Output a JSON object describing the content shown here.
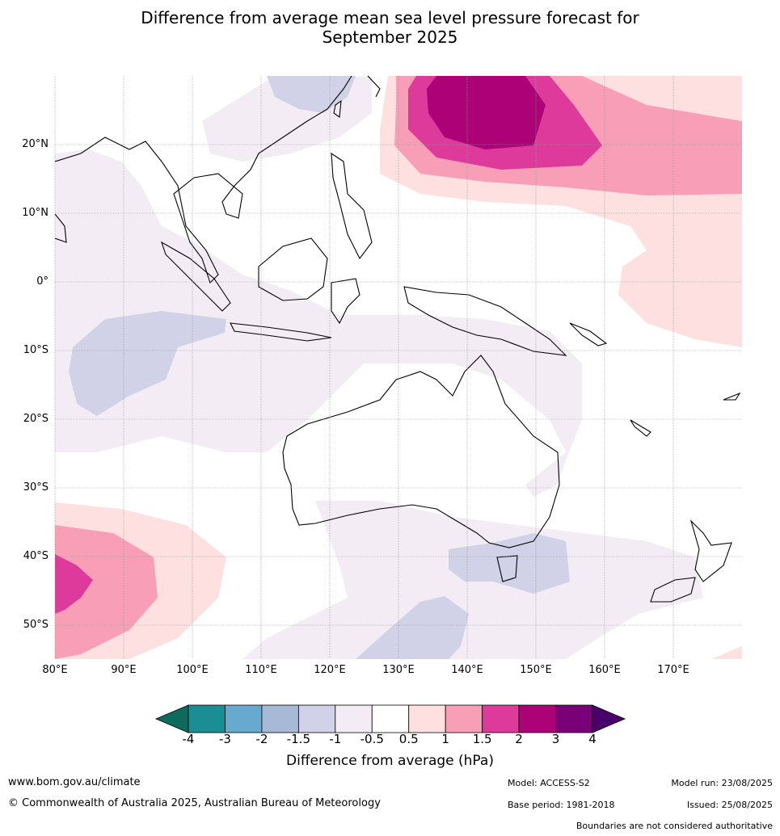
{
  "title_line1": "Difference from average mean sea level pressure forecast for",
  "title_line2": "September 2025",
  "lat_labels": [
    "20°N",
    "10°N",
    "0°",
    "10°S",
    "20°S",
    "30°S",
    "40°S",
    "50°S"
  ],
  "lon_labels": [
    "80°E",
    "90°E",
    "100°E",
    "110°E",
    "120°E",
    "130°E",
    "140°E",
    "150°E",
    "160°E",
    "170°E"
  ],
  "colorbar": {
    "ticks": [
      "-4",
      "-3",
      "-2",
      "-1.5",
      "-1",
      "-0.5",
      "0.5",
      "1",
      "1.5",
      "2",
      "3",
      "4"
    ],
    "colors": [
      "#1a8d95",
      "#68a9d0",
      "#a8b9d6",
      "#d1d2e7",
      "#f3ecf5",
      "#ffffff",
      "#fde0df",
      "#f89eb6",
      "#de3a9c",
      "#ad0178",
      "#7a0077"
    ],
    "under_color": "#0d6b5d",
    "over_color": "#49006a",
    "title": "Difference from average (hPa)"
  },
  "footer": {
    "url": "www.bom.gov.au/climate",
    "copyright": "© Commonwealth of Australia 2025, Australian Bureau of Meteorology",
    "model": "Model: ACCESS-S2",
    "base_period": "Base period: 1981-2018",
    "model_run": "Model run: 23/08/2025",
    "issued": "Issued: 25/08/2025",
    "disclaimer": "Boundaries are not considered authoritative"
  }
}
